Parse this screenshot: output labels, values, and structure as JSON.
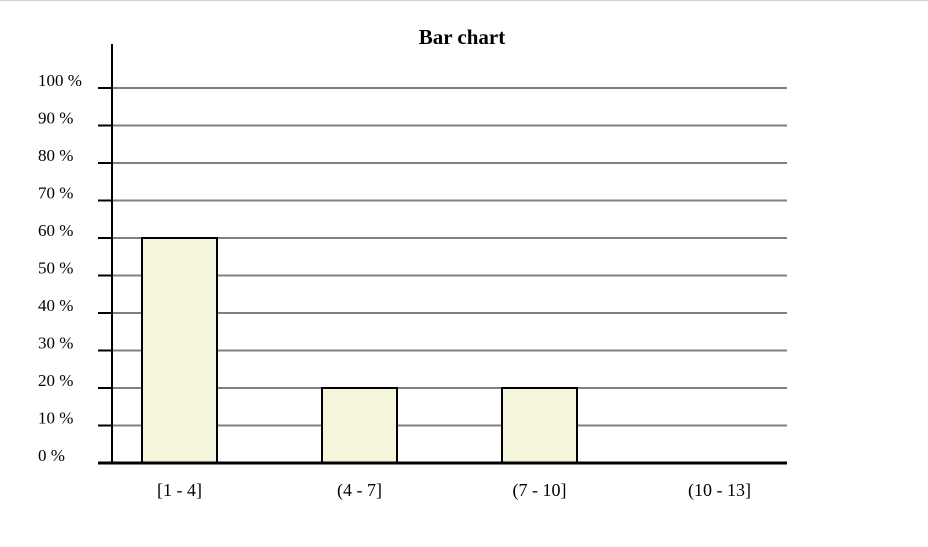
{
  "chart_data": {
    "type": "bar",
    "title": "Bar chart",
    "xlabel": "",
    "ylabel": "",
    "categories": [
      "[1 - 4]",
      "(4 - 7]",
      "(7 - 10]",
      "(10 - 13]"
    ],
    "values": [
      60,
      20,
      20,
      0
    ],
    "ylim": [
      0,
      100
    ],
    "yticks": [
      0,
      10,
      20,
      30,
      40,
      50,
      60,
      70,
      80,
      90,
      100
    ],
    "ytick_labels": [
      "0 %",
      "10 %",
      "20 %",
      "30 %",
      "40 %",
      "50 %",
      "60 %",
      "70 %",
      "80 %",
      "90 %",
      "100 %"
    ],
    "grid": true,
    "legend": "none",
    "colors": {
      "bar_fill": "#f5f5dc",
      "bar_stroke": "#000000",
      "grid": "#808080",
      "axis": "#000000",
      "text": "#000000"
    }
  }
}
